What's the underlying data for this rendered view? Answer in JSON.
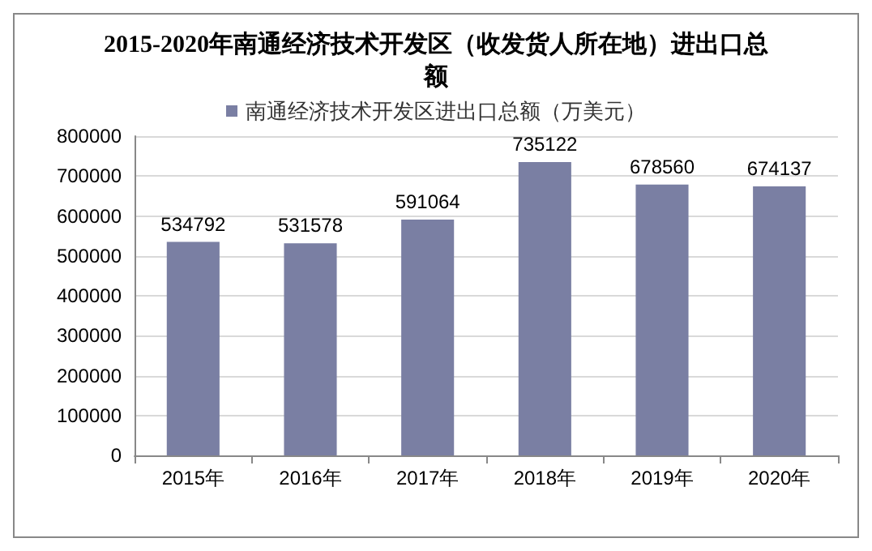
{
  "chart_data": {
    "type": "bar",
    "title": "2015-2020年南通经济技术开发区（收发货人所在地）进出口总额",
    "categories": [
      "2015年",
      "2016年",
      "2017年",
      "2018年",
      "2019年",
      "2020年"
    ],
    "series": [
      {
        "name": "南通经济技术开发区进出口总额（万美元）",
        "color": "#7a7fa3",
        "values": [
          534792,
          531578,
          591064,
          735122,
          678560,
          674137
        ]
      }
    ],
    "ylim": [
      0,
      800000
    ],
    "yticks": [
      0,
      100000,
      200000,
      300000,
      400000,
      500000,
      600000,
      700000,
      800000
    ],
    "grid": "y",
    "legend": "top",
    "data_labels": true
  }
}
